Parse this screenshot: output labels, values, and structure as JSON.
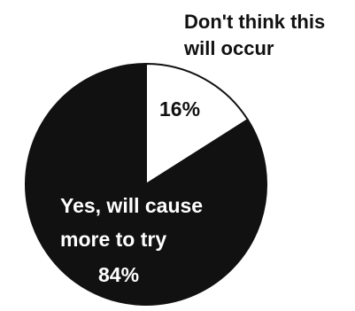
{
  "chart_data": {
    "type": "pie",
    "slices": [
      {
        "label_lines": [
          "Don't think this",
          "will occur"
        ],
        "value_label": "16%",
        "value": 16,
        "color": "#ffffff",
        "label_position": "outside-top-right"
      },
      {
        "label_lines": [
          "Yes, will cause",
          "more to try"
        ],
        "value_label": "84%",
        "value": 84,
        "color": "#111111",
        "label_position": "inside"
      }
    ],
    "start_angle_deg": 0,
    "direction": "clockwise",
    "colors": {
      "dark": "#111111",
      "light": "#ffffff",
      "label_on_dark": "#ffffff",
      "label_on_light": "#111111"
    }
  }
}
